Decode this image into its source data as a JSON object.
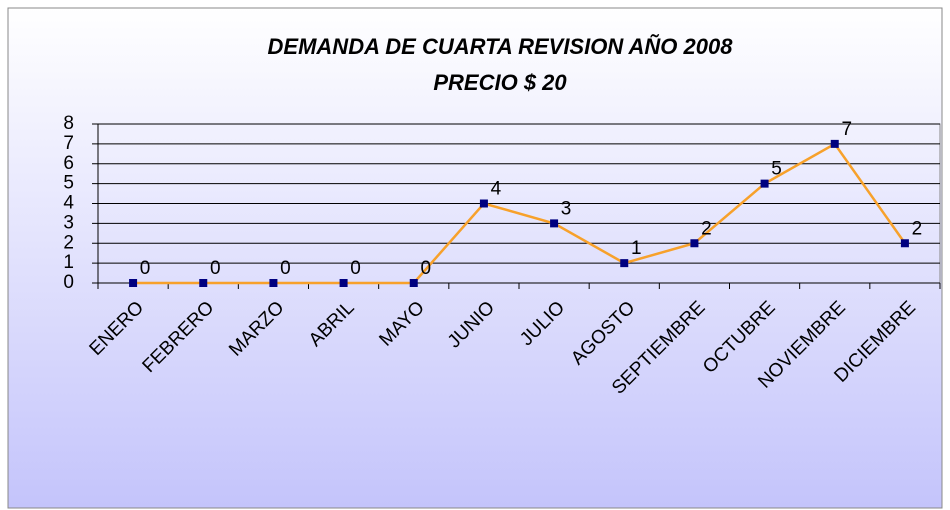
{
  "chart_data": {
    "type": "line",
    "title": "DEMANDA DE CUARTA REVISION AÑO 2008",
    "subtitle": "PRECIO $ 20",
    "categories": [
      "ENERO",
      "FEBRERO",
      "MARZO",
      "ABRIL",
      "MAYO",
      "JUNIO",
      "JULIO",
      "AGOSTO",
      "SEPTIEMBRE",
      "OCTUBRE",
      "NOVIEMBRE",
      "DICIEMBRE"
    ],
    "series": [
      {
        "color": "#f7a12b",
        "marker_color": "#000080",
        "values": [
          0,
          0,
          0,
          0,
          0,
          4,
          3,
          1,
          2,
          5,
          7,
          2
        ]
      }
    ],
    "ylim": [
      0,
      8
    ],
    "yticks": [
      0,
      1,
      2,
      3,
      4,
      5,
      6,
      7,
      8
    ],
    "grid": true
  }
}
